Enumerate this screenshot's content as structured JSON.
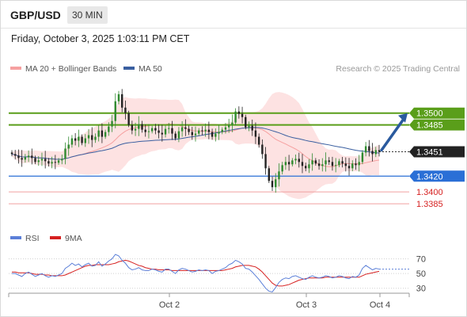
{
  "header": {
    "pair": "GBP/USD",
    "timeframe": "30 MIN",
    "datetime": "Friday, October 3, 2025 1:03:11 PM CET"
  },
  "colors": {
    "bollinger": "#f6a0a0",
    "ma50": "#3a5fa0",
    "resistance": "#5a9e1a",
    "support": "#2a6fd6",
    "support_weak": "#f0a0a0",
    "rsi": "#5b7fd8",
    "rsi_ma": "#d62020",
    "candle_up": "#2f8a2f",
    "candle_down": "#222222"
  },
  "chart_data": [
    {
      "type": "candlestick",
      "legend": [
        {
          "label": "MA 20 + Bollinger Bands",
          "color": "#f6a0a0"
        },
        {
          "label": "MA 50",
          "color": "#3a5fa0"
        }
      ],
      "legend_placement": "top-left",
      "credit": "Research © 2025 Trading Central",
      "x_ticks": [
        "Oct 2",
        "Oct 3",
        "Oct 4"
      ],
      "ylim": [
        1.3373,
        1.3544
      ],
      "current_price": 1.3451,
      "levels": [
        {
          "label": "1.3500",
          "value": 1.35,
          "kind": "resistance"
        },
        {
          "label": "1.3485",
          "value": 1.3485,
          "kind": "resistance"
        },
        {
          "label": "1.3420",
          "value": 1.342,
          "kind": "support"
        },
        {
          "label": "1.3400",
          "value": 1.34,
          "kind": "support_weak"
        },
        {
          "label": "1.3385",
          "value": 1.3385,
          "kind": "support_weak"
        }
      ],
      "current_label": "1.3451",
      "forecast": {
        "from": 1.3453,
        "to": 1.35
      },
      "close": [
        1.3448,
        1.3446,
        1.3443,
        1.3441,
        1.3444,
        1.3446,
        1.3443,
        1.3438,
        1.344,
        1.3442,
        1.3439,
        1.3436,
        1.3438,
        1.3437,
        1.344,
        1.3442,
        1.3455,
        1.346,
        1.3468,
        1.3465,
        1.347,
        1.3462,
        1.3468,
        1.3472,
        1.3466,
        1.347,
        1.3478,
        1.347,
        1.3476,
        1.3483,
        1.349,
        1.3515,
        1.3524,
        1.3507,
        1.35,
        1.3485,
        1.3478,
        1.348,
        1.3486,
        1.3479,
        1.3476,
        1.3477,
        1.3481,
        1.3478,
        1.3475,
        1.3473,
        1.348,
        1.3481,
        1.3474,
        1.3468,
        1.3477,
        1.3482,
        1.348,
        1.3476,
        1.3472,
        1.3474,
        1.3478,
        1.3477,
        1.3479,
        1.3476,
        1.347,
        1.3474,
        1.3476,
        1.3479,
        1.3482,
        1.3485,
        1.3488,
        1.3502,
        1.3499,
        1.3495,
        1.3482,
        1.3484,
        1.3478,
        1.347,
        1.346,
        1.3448,
        1.343,
        1.3414,
        1.3406,
        1.3416,
        1.3426,
        1.3434,
        1.3438,
        1.3435,
        1.344,
        1.3442,
        1.3438,
        1.3433,
        1.343,
        1.3435,
        1.344,
        1.3436,
        1.3433,
        1.3435,
        1.344,
        1.3438,
        1.3433,
        1.3434,
        1.3439,
        1.3436,
        1.3433,
        1.343,
        1.3436,
        1.3434,
        1.3438,
        1.345,
        1.3458,
        1.3452,
        1.3448,
        1.3453,
        1.3451
      ]
    },
    {
      "type": "line",
      "legend": [
        {
          "label": "RSI",
          "color": "#5b7fd8"
        },
        {
          "label": "9MA",
          "color": "#d62020"
        }
      ],
      "y_ticks": [
        "70",
        "50",
        "30"
      ],
      "ylim": [
        20,
        90
      ],
      "series": [
        {
          "name": "RSI",
          "values": [
            50,
            50,
            48,
            46,
            50,
            52,
            49,
            46,
            48,
            50,
            47,
            45,
            47,
            46,
            48,
            50,
            57,
            60,
            64,
            61,
            63,
            59,
            62,
            64,
            60,
            61,
            66,
            60,
            63,
            67,
            70,
            76,
            74,
            68,
            64,
            58,
            55,
            56,
            58,
            55,
            54,
            54,
            56,
            55,
            53,
            52,
            56,
            56,
            53,
            50,
            55,
            57,
            56,
            54,
            52,
            53,
            55,
            54,
            55,
            54,
            50,
            53,
            54,
            56,
            58,
            62,
            64,
            68,
            66,
            63,
            57,
            56,
            52,
            47,
            42,
            36,
            30,
            26,
            25,
            31,
            38,
            42,
            44,
            43,
            46,
            47,
            45,
            43,
            42,
            45,
            47,
            45,
            44,
            45,
            47,
            46,
            44,
            45,
            47,
            46,
            44,
            43,
            46,
            45,
            48,
            57,
            61,
            58,
            55,
            57,
            56
          ]
        },
        {
          "name": "9MA",
          "values": [
            52,
            52,
            51,
            51,
            51,
            51,
            50,
            49,
            49,
            49,
            48,
            48,
            47,
            47,
            47,
            47,
            48,
            50,
            52,
            54,
            56,
            58,
            60,
            61,
            61,
            62,
            62,
            62,
            62,
            62,
            63,
            64,
            66,
            67,
            68,
            67,
            65,
            63,
            61,
            60,
            58,
            57,
            56,
            56,
            55,
            55,
            55,
            55,
            54,
            54,
            54,
            54,
            54,
            54,
            54,
            54,
            54,
            54,
            54,
            54,
            54,
            54,
            54,
            54,
            55,
            56,
            57,
            59,
            60,
            61,
            61,
            61,
            60,
            59,
            56,
            52,
            47,
            42,
            37,
            34,
            33,
            33,
            34,
            35,
            37,
            39,
            41,
            42,
            43,
            44,
            44,
            44,
            44,
            44,
            45,
            45,
            45,
            45,
            45,
            45,
            45,
            45,
            45,
            45,
            45,
            47,
            49,
            50,
            51,
            52,
            53
          ]
        }
      ]
    }
  ]
}
